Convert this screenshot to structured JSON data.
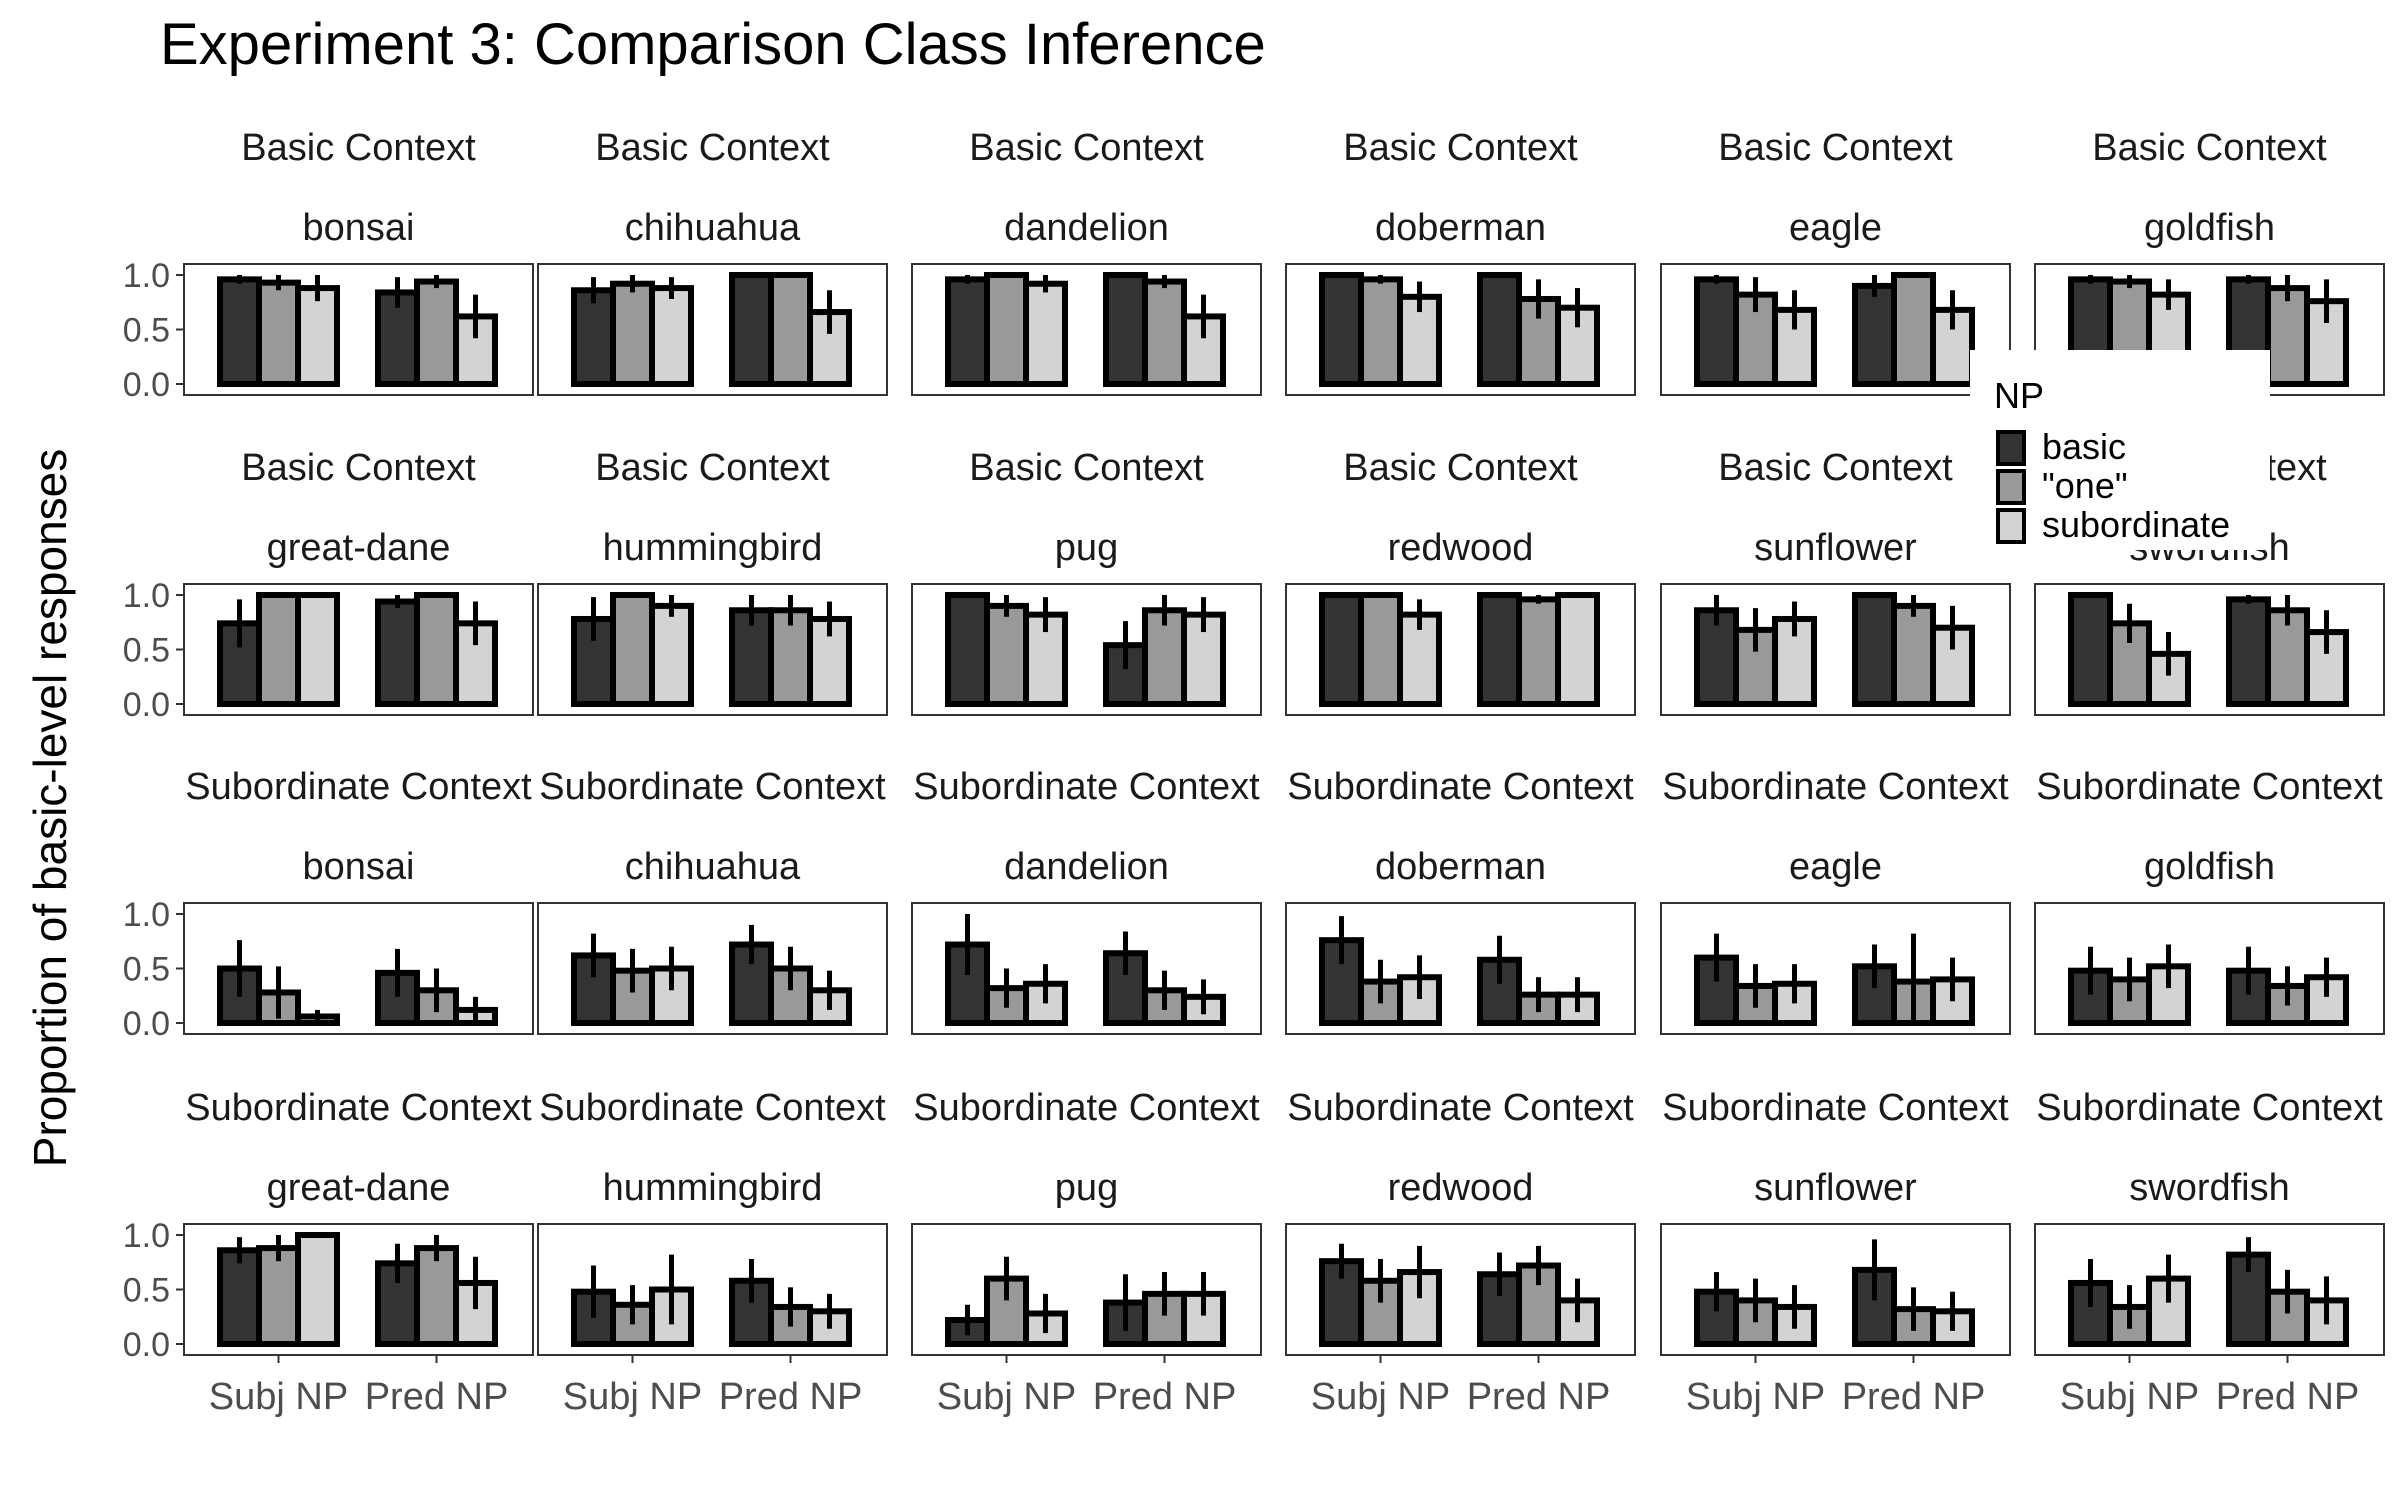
{
  "chart_data": {
    "type": "bar",
    "title": "Experiment 3: Comparison Class Inference",
    "ylabel": "Proportion of basic-level responses",
    "xlabel": "",
    "ylim": [
      0,
      1
    ],
    "y_ticks": [
      "0.0",
      "0.5",
      "1.0"
    ],
    "categories": [
      "Subj NP",
      "Pred NP"
    ],
    "series_names": [
      "basic",
      "\"one\"",
      "subordinate"
    ],
    "legend": {
      "title": "NP",
      "placement": "right-overlay",
      "entries": [
        "basic",
        "\"one\"",
        "subordinate"
      ],
      "colors": [
        "#333333",
        "#999999",
        "#d3d3d3"
      ]
    },
    "colors": {
      "basic": "#333333",
      "one": "#999999",
      "subordinate": "#d3d3d3",
      "outline": "#000000",
      "panel_border": "#333333"
    },
    "panels": [
      {
        "context": "Basic Context",
        "item": "bonsai",
        "values": [
          [
            0.96,
            0.93,
            0.88
          ],
          [
            0.84,
            0.94,
            0.62
          ]
        ],
        "err": [
          [
            0.04,
            0.07,
            0.12
          ],
          [
            0.14,
            0.06,
            0.2
          ]
        ]
      },
      {
        "context": "Basic Context",
        "item": "chihuahua",
        "values": [
          [
            0.86,
            0.92,
            0.88
          ],
          [
            1.0,
            1.0,
            0.66
          ]
        ],
        "err": [
          [
            0.12,
            0.08,
            0.1
          ],
          [
            0.0,
            0.0,
            0.2
          ]
        ]
      },
      {
        "context": "Basic Context",
        "item": "dandelion",
        "values": [
          [
            0.96,
            1.0,
            0.92
          ],
          [
            1.0,
            0.94,
            0.62
          ]
        ],
        "err": [
          [
            0.04,
            0.0,
            0.08
          ],
          [
            0.0,
            0.06,
            0.2
          ]
        ]
      },
      {
        "context": "Basic Context",
        "item": "doberman",
        "values": [
          [
            1.0,
            0.96,
            0.8
          ],
          [
            1.0,
            0.78,
            0.7
          ]
        ],
        "err": [
          [
            0.0,
            0.04,
            0.14
          ],
          [
            0.0,
            0.18,
            0.18
          ]
        ]
      },
      {
        "context": "Basic Context",
        "item": "eagle",
        "values": [
          [
            0.96,
            0.82,
            0.68
          ],
          [
            0.9,
            1.0,
            0.68
          ]
        ],
        "err": [
          [
            0.04,
            0.16,
            0.18
          ],
          [
            0.1,
            0.0,
            0.18
          ]
        ]
      },
      {
        "context": "Basic Context",
        "item": "goldfish",
        "values": [
          [
            0.96,
            0.94,
            0.82
          ],
          [
            0.96,
            0.88,
            0.76
          ]
        ],
        "err": [
          [
            0.04,
            0.06,
            0.14
          ],
          [
            0.04,
            0.12,
            0.2
          ]
        ]
      },
      {
        "context": "Basic Context",
        "item": "great-dane",
        "values": [
          [
            0.74,
            1.0,
            1.0
          ],
          [
            0.94,
            1.0,
            0.74
          ]
        ],
        "err": [
          [
            0.22,
            0.0,
            0.0
          ],
          [
            0.06,
            0.0,
            0.2
          ]
        ]
      },
      {
        "context": "Basic Context",
        "item": "hummingbird",
        "values": [
          [
            0.78,
            1.0,
            0.9
          ],
          [
            0.86,
            0.86,
            0.78
          ]
        ],
        "err": [
          [
            0.2,
            0.0,
            0.1
          ],
          [
            0.14,
            0.14,
            0.16
          ]
        ]
      },
      {
        "context": "Basic Context",
        "item": "pug",
        "values": [
          [
            1.0,
            0.9,
            0.82
          ],
          [
            0.54,
            0.86,
            0.82
          ]
        ],
        "err": [
          [
            0.0,
            0.1,
            0.16
          ],
          [
            0.22,
            0.14,
            0.16
          ]
        ]
      },
      {
        "context": "Basic Context",
        "item": "redwood",
        "values": [
          [
            1.0,
            1.0,
            0.82
          ],
          [
            1.0,
            0.96,
            1.0
          ]
        ],
        "err": [
          [
            0.0,
            0.0,
            0.14
          ],
          [
            0.0,
            0.04,
            0.0
          ]
        ]
      },
      {
        "context": "Basic Context",
        "item": "sunflower",
        "values": [
          [
            0.86,
            0.68,
            0.78
          ],
          [
            1.0,
            0.9,
            0.7
          ]
        ],
        "err": [
          [
            0.14,
            0.2,
            0.16
          ],
          [
            0.0,
            0.1,
            0.2
          ]
        ]
      },
      {
        "context": "Basic Context",
        "item": "swordfish",
        "values": [
          [
            1.0,
            0.74,
            0.46
          ],
          [
            0.96,
            0.86,
            0.66
          ]
        ],
        "err": [
          [
            0.0,
            0.18,
            0.2
          ],
          [
            0.04,
            0.14,
            0.2
          ]
        ]
      },
      {
        "context": "Subordinate Context",
        "item": "bonsai",
        "values": [
          [
            0.5,
            0.28,
            0.06
          ],
          [
            0.46,
            0.3,
            0.12
          ]
        ],
        "err": [
          [
            0.26,
            0.24,
            0.06
          ],
          [
            0.22,
            0.2,
            0.12
          ]
        ]
      },
      {
        "context": "Subordinate Context",
        "item": "chihuahua",
        "values": [
          [
            0.62,
            0.48,
            0.5
          ],
          [
            0.72,
            0.5,
            0.3
          ]
        ],
        "err": [
          [
            0.2,
            0.2,
            0.2
          ],
          [
            0.18,
            0.2,
            0.18
          ]
        ]
      },
      {
        "context": "Subordinate Context",
        "item": "dandelion",
        "values": [
          [
            0.72,
            0.32,
            0.36
          ],
          [
            0.64,
            0.3,
            0.24
          ]
        ],
        "err": [
          [
            0.28,
            0.18,
            0.18
          ],
          [
            0.2,
            0.18,
            0.16
          ]
        ]
      },
      {
        "context": "Subordinate Context",
        "item": "doberman",
        "values": [
          [
            0.76,
            0.38,
            0.42
          ],
          [
            0.58,
            0.26,
            0.26
          ]
        ],
        "err": [
          [
            0.22,
            0.2,
            0.2
          ],
          [
            0.22,
            0.16,
            0.16
          ]
        ]
      },
      {
        "context": "Subordinate Context",
        "item": "eagle",
        "values": [
          [
            0.6,
            0.34,
            0.36
          ],
          [
            0.52,
            0.38,
            0.4
          ]
        ],
        "err": [
          [
            0.22,
            0.2,
            0.18
          ],
          [
            0.2,
            0.44,
            0.2
          ]
        ]
      },
      {
        "context": "Subordinate Context",
        "item": "goldfish",
        "values": [
          [
            0.48,
            0.4,
            0.52
          ],
          [
            0.48,
            0.34,
            0.42
          ]
        ],
        "err": [
          [
            0.22,
            0.2,
            0.2
          ],
          [
            0.22,
            0.18,
            0.18
          ]
        ]
      },
      {
        "context": "Subordinate Context",
        "item": "great-dane",
        "values": [
          [
            0.86,
            0.88,
            1.0
          ],
          [
            0.74,
            0.88,
            0.56
          ]
        ],
        "err": [
          [
            0.12,
            0.12,
            0.0
          ],
          [
            0.18,
            0.12,
            0.24
          ]
        ]
      },
      {
        "context": "Subordinate Context",
        "item": "hummingbird",
        "values": [
          [
            0.48,
            0.36,
            0.5
          ],
          [
            0.58,
            0.34,
            0.3
          ]
        ],
        "err": [
          [
            0.24,
            0.18,
            0.32
          ],
          [
            0.2,
            0.18,
            0.16
          ]
        ]
      },
      {
        "context": "Subordinate Context",
        "item": "pug",
        "values": [
          [
            0.22,
            0.6,
            0.28
          ],
          [
            0.38,
            0.46,
            0.46
          ]
        ],
        "err": [
          [
            0.14,
            0.2,
            0.18
          ],
          [
            0.26,
            0.2,
            0.2
          ]
        ]
      },
      {
        "context": "Subordinate Context",
        "item": "redwood",
        "values": [
          [
            0.76,
            0.58,
            0.66
          ],
          [
            0.64,
            0.72,
            0.4
          ]
        ],
        "err": [
          [
            0.16,
            0.2,
            0.24
          ],
          [
            0.2,
            0.18,
            0.2
          ]
        ]
      },
      {
        "context": "Subordinate Context",
        "item": "sunflower",
        "values": [
          [
            0.48,
            0.4,
            0.34
          ],
          [
            0.68,
            0.32,
            0.3
          ]
        ],
        "err": [
          [
            0.18,
            0.2,
            0.2
          ],
          [
            0.28,
            0.2,
            0.18
          ]
        ]
      },
      {
        "context": "Subordinate Context",
        "item": "swordfish",
        "values": [
          [
            0.56,
            0.34,
            0.6
          ],
          [
            0.82,
            0.48,
            0.4
          ]
        ],
        "err": [
          [
            0.22,
            0.2,
            0.22
          ],
          [
            0.16,
            0.2,
            0.22
          ]
        ]
      }
    ]
  }
}
